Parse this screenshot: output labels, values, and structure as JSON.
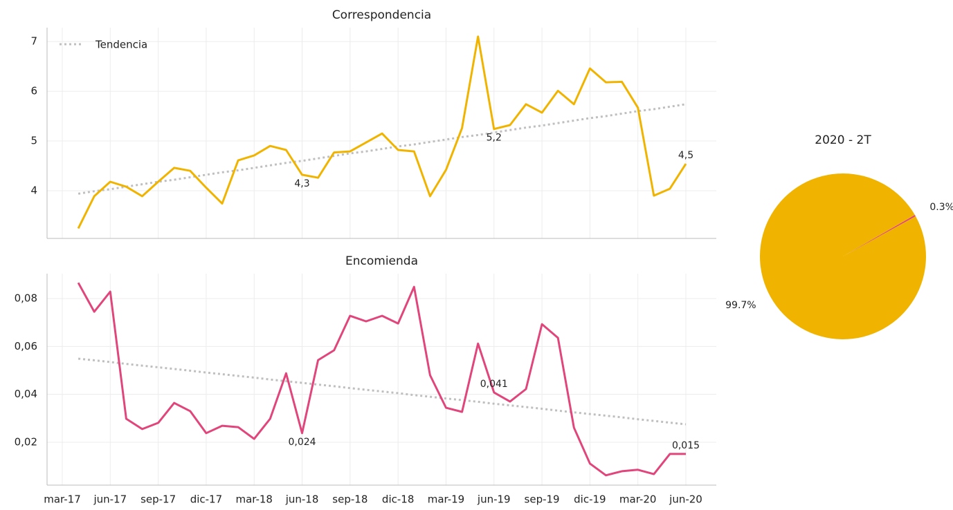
{
  "chart_data": [
    {
      "type": "line",
      "title": "Correspondencia",
      "color": "#f0b400",
      "values": [
        null,
        3.24,
        3.89,
        4.18,
        4.08,
        3.89,
        4.18,
        4.46,
        4.4,
        4.06,
        3.74,
        4.61,
        4.71,
        4.9,
        4.82,
        4.32,
        4.26,
        4.77,
        4.79,
        4.97,
        5.15,
        4.82,
        4.79,
        3.89,
        4.42,
        5.26,
        7.1,
        5.24,
        5.32,
        5.74,
        5.57,
        6.01,
        5.74,
        6.46,
        6.18,
        6.19,
        5.67,
        3.9,
        4.04,
        4.54
      ],
      "value_labels": [
        null,
        null,
        null,
        null,
        null,
        null,
        null,
        null,
        null,
        null,
        null,
        null,
        null,
        null,
        null,
        "4,3",
        null,
        null,
        null,
        null,
        null,
        null,
        null,
        null,
        null,
        null,
        null,
        "5,2",
        null,
        null,
        null,
        null,
        null,
        null,
        null,
        null,
        null,
        null,
        null,
        "4,5"
      ],
      "trend": {
        "name": "Tendencia",
        "color": "#bfbfbf",
        "values": [
          null,
          3.94,
          3.99,
          4.03,
          4.08,
          4.13,
          4.18,
          4.22,
          4.27,
          4.32,
          4.37,
          4.41,
          4.46,
          4.51,
          4.56,
          4.6,
          4.65,
          4.7,
          4.75,
          4.79,
          4.84,
          4.89,
          4.93,
          4.98,
          5.03,
          5.08,
          5.12,
          5.17,
          5.22,
          5.27,
          5.31,
          5.36,
          5.41,
          5.46,
          5.5,
          5.55,
          5.6,
          5.64,
          5.69,
          5.74
        ]
      },
      "ylim": [
        3.04,
        7.28
      ],
      "yticks": [
        4,
        5,
        6,
        7
      ],
      "grid": true,
      "legend": "upper left"
    },
    {
      "type": "line",
      "title": "Encomienda",
      "color": "#e0457b",
      "categories": [
        "mar-17",
        null,
        null,
        "jun-17",
        null,
        null,
        "sep-17",
        null,
        null,
        "dic-17",
        null,
        null,
        "mar-18",
        null,
        null,
        "jun-18",
        null,
        null,
        "sep-18",
        null,
        null,
        "dic-18",
        null,
        null,
        "mar-19",
        null,
        null,
        "jun-19",
        null,
        null,
        "sep-19",
        null,
        null,
        "dic-19",
        null,
        null,
        "mar-20",
        null,
        null,
        "jun-20"
      ],
      "values": [
        null,
        0.0866,
        0.0745,
        0.0829,
        0.0298,
        0.0255,
        0.0281,
        0.0364,
        0.033,
        0.0238,
        0.0269,
        0.0263,
        0.0214,
        0.0298,
        0.0488,
        0.0238,
        0.0543,
        0.0584,
        0.0728,
        0.0705,
        0.0728,
        0.0696,
        0.0849,
        0.048,
        0.0344,
        0.0327,
        0.0612,
        0.0408,
        0.037,
        0.0422,
        0.0693,
        0.0636,
        0.0261,
        0.0111,
        0.0062,
        0.0079,
        0.0085,
        0.0067,
        0.0151,
        0.0151
      ],
      "value_labels": [
        null,
        null,
        null,
        null,
        null,
        null,
        null,
        null,
        null,
        null,
        null,
        null,
        null,
        null,
        null,
        "0,024",
        null,
        null,
        null,
        null,
        null,
        null,
        null,
        null,
        null,
        null,
        null,
        "0,041",
        null,
        null,
        null,
        null,
        null,
        null,
        null,
        null,
        null,
        null,
        null,
        "0,015"
      ],
      "trend": {
        "color": "#bfbfbf",
        "values": [
          null,
          0.0549,
          0.0542,
          0.0535,
          0.0527,
          0.052,
          0.0513,
          0.0506,
          0.0499,
          0.0491,
          0.0484,
          0.0477,
          0.047,
          0.0462,
          0.0455,
          0.0448,
          0.0441,
          0.0434,
          0.0426,
          0.0419,
          0.0412,
          0.0405,
          0.0397,
          0.039,
          0.0383,
          0.0376,
          0.0369,
          0.0361,
          0.0354,
          0.0347,
          0.034,
          0.0332,
          0.0325,
          0.0318,
          0.0311,
          0.0304,
          0.0296,
          0.0289,
          0.0282,
          0.0275
        ]
      },
      "ylim": [
        0.0021,
        0.0904
      ],
      "yticks": [
        {
          "value": 0.02,
          "label": "0,02"
        },
        {
          "value": 0.04,
          "label": "0,04"
        },
        {
          "value": 0.06,
          "label": "0,06"
        },
        {
          "value": 0.08,
          "label": "0,08"
        }
      ],
      "grid": true
    },
    {
      "type": "pie",
      "title": "2020 - 2T",
      "values": [
        0.3,
        99.7
      ],
      "value_labels": [
        "0.3%",
        "99.7%"
      ],
      "colors": [
        "#e0457b",
        "#f0b400"
      ]
    }
  ]
}
